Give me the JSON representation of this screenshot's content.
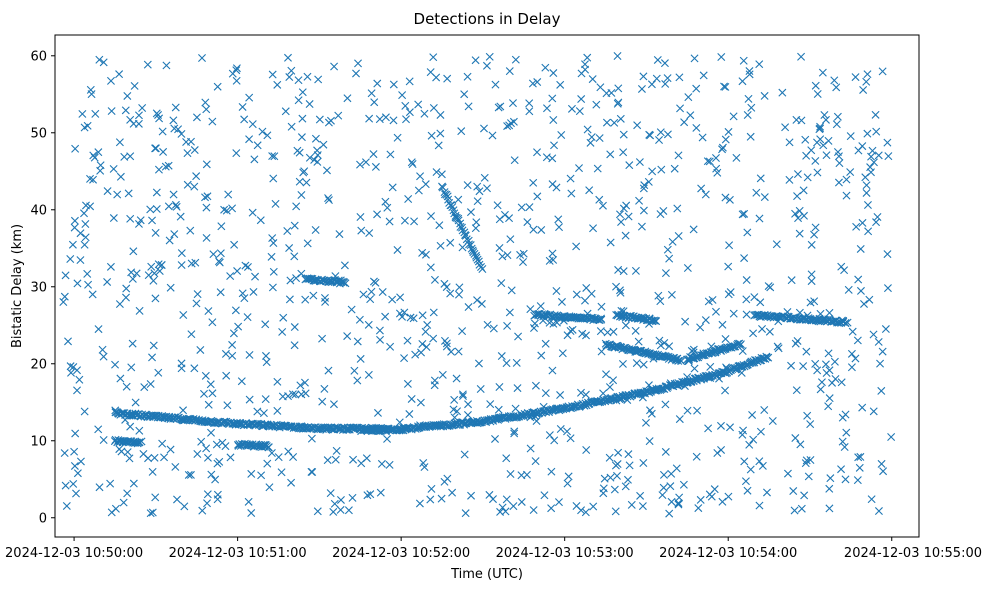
{
  "chart_data": {
    "type": "scatter",
    "title": "Detections in Delay",
    "xlabel": "Time (UTC)",
    "ylabel": "Bistatic Delay (km)",
    "marker": "x",
    "color": "#1f77b4",
    "grid": false,
    "x_ticks": [
      "2024-12-03 10:50:00",
      "2024-12-03 10:51:00",
      "2024-12-03 10:52:00",
      "2024-12-03 10:53:00",
      "2024-12-03 10:54:00",
      "2024-12-03 10:55:00"
    ],
    "y_ticks": [
      "0",
      "10",
      "20",
      "30",
      "40",
      "50",
      "60"
    ],
    "xlim": [
      "2024-12-03 10:49:53",
      "2024-12-03 10:55:10"
    ],
    "ylim": [
      -2.5,
      62.7
    ],
    "data_time_span": [
      "2024-12-03 10:49:56",
      "2024-12-03 10:55:00"
    ],
    "noise_delay_range_km": [
      0.5,
      60
    ],
    "tracks": [
      {
        "type": "curve",
        "points": [
          {
            "time": "2024-12-03 10:50:15",
            "delay_km": 13.6
          },
          {
            "time": "2024-12-03 10:50:40",
            "delay_km": 12.8
          },
          {
            "time": "2024-12-03 10:51:00",
            "delay_km": 12.2
          },
          {
            "time": "2024-12-03 10:51:30",
            "delay_km": 11.6
          },
          {
            "time": "2024-12-03 10:52:00",
            "delay_km": 11.5
          },
          {
            "time": "2024-12-03 10:52:30",
            "delay_km": 12.5
          },
          {
            "time": "2024-12-03 10:53:00",
            "delay_km": 14.2
          },
          {
            "time": "2024-12-03 10:53:30",
            "delay_km": 16.3
          },
          {
            "time": "2024-12-03 10:54:00",
            "delay_km": 19.0
          },
          {
            "time": "2024-12-03 10:54:15",
            "delay_km": 21.0
          }
        ]
      },
      {
        "type": "line",
        "points": [
          {
            "time": "2024-12-03 10:52:49",
            "delay_km": 26.4
          },
          {
            "time": "2024-12-03 10:53:14",
            "delay_km": 25.7
          }
        ]
      },
      {
        "type": "line",
        "points": [
          {
            "time": "2024-12-03 10:53:19",
            "delay_km": 26.3
          },
          {
            "time": "2024-12-03 10:53:34",
            "delay_km": 25.6
          }
        ]
      },
      {
        "type": "line",
        "points": [
          {
            "time": "2024-12-03 10:54:10",
            "delay_km": 26.3
          },
          {
            "time": "2024-12-03 10:54:44",
            "delay_km": 25.4
          }
        ]
      },
      {
        "type": "line",
        "points": [
          {
            "time": "2024-12-03 10:53:15",
            "delay_km": 22.5
          },
          {
            "time": "2024-12-03 10:53:43",
            "delay_km": 20.4
          }
        ]
      },
      {
        "type": "line",
        "points": [
          {
            "time": "2024-12-03 10:53:45",
            "delay_km": 20.6
          },
          {
            "time": "2024-12-03 10:54:05",
            "delay_km": 22.6
          }
        ]
      },
      {
        "type": "line",
        "points": [
          {
            "time": "2024-12-03 10:51:25",
            "delay_km": 31.0
          },
          {
            "time": "2024-12-03 10:51:40",
            "delay_km": 30.6
          }
        ]
      },
      {
        "type": "line",
        "points": [
          {
            "time": "2024-12-03 10:50:15",
            "delay_km": 10.0
          },
          {
            "time": "2024-12-03 10:50:25",
            "delay_km": 9.8
          }
        ]
      },
      {
        "type": "line",
        "points": [
          {
            "time": "2024-12-03 10:51:00",
            "delay_km": 9.5
          },
          {
            "time": "2024-12-03 10:51:12",
            "delay_km": 9.3
          }
        ]
      },
      {
        "type": "line",
        "points": [
          {
            "time": "2024-12-03 10:51:45",
            "delay_km": 11.4
          },
          {
            "time": "2024-12-03 10:51:55",
            "delay_km": 11.3
          }
        ]
      },
      {
        "type": "line",
        "points": [
          {
            "time": "2024-12-03 10:52:15",
            "delay_km": 43.0
          },
          {
            "time": "2024-12-03 10:52:30",
            "delay_km": 32.0
          }
        ]
      }
    ]
  }
}
